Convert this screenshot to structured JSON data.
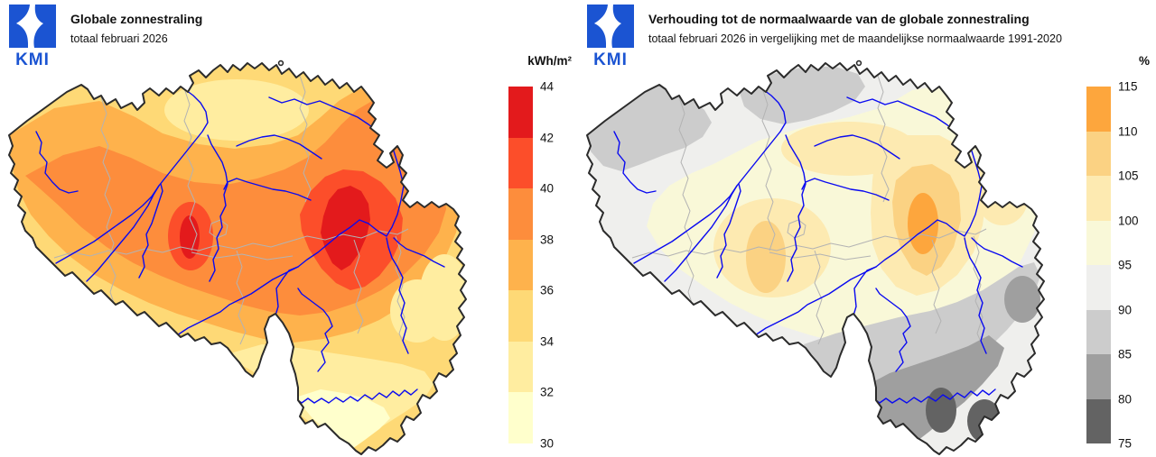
{
  "map_style": {
    "river_color": "#0a0af0",
    "province_border_color": "#b3b3b3",
    "country_border_color": "#2b2b2b",
    "logo_color": "#1b54d2",
    "background": "#ffffff"
  },
  "panels": [
    {
      "logo_text": "KMI",
      "title": "Globale zonnestraling",
      "subtitle": "totaal februari 2026",
      "legend": {
        "unit": "kWh/m²",
        "ticks": [
          "44",
          "42",
          "40",
          "38",
          "36",
          "34",
          "32",
          "30"
        ],
        "colors_top_to_bottom": [
          "#e31a1c",
          "#fc4e2a",
          "#fd8d3c",
          "#feb24c",
          "#fed976",
          "#ffeda0",
          "#ffffcc"
        ]
      }
    },
    {
      "logo_text": "KMI",
      "title": "Verhouding tot de normaalwaarde van de globale zonnestraling",
      "subtitle": "totaal februari 2026 in vergelijking met de maandelijkse normaalwaarde 1991-2020",
      "legend": {
        "unit": "%",
        "ticks": [
          "115",
          "110",
          "105",
          "100",
          "95",
          "90",
          "85",
          "80",
          "75"
        ],
        "colors_top_to_bottom": [
          "#fda63d",
          "#fbd283",
          "#fdeab1",
          "#f9f8d8",
          "#efefed",
          "#cccccc",
          "#9f9f9f",
          "#636363"
        ]
      }
    }
  ],
  "chart_data": [
    {
      "type": "heatmap",
      "title": "Globale zonnestraling",
      "subtitle": "totaal februari 2026",
      "unit": "kWh/m²",
      "scale_ticks": [
        44,
        42,
        40,
        38,
        36,
        34,
        32,
        30
      ],
      "bands": [
        {
          "range": "42-44",
          "color": "#e31a1c"
        },
        {
          "range": "40-42",
          "color": "#fc4e2a"
        },
        {
          "range": "38-40",
          "color": "#fd8d3c"
        },
        {
          "range": "36-38",
          "color": "#feb24c"
        },
        {
          "range": "34-36",
          "color": "#fed976"
        },
        {
          "range": "32-34",
          "color": "#ffeda0"
        },
        {
          "range": "30-32",
          "color": "#ffffcc"
        }
      ],
      "pattern": "maximum 42-44 kWh/m² in east-central Belgium and a small west-central core; 38-40 across the centre; minimum 30-32 kWh/m² in the far south (Ardennes/Gaume)"
    },
    {
      "type": "heatmap",
      "title": "Verhouding tot de normaalwaarde van de globale zonnestraling",
      "subtitle": "totaal februari 2026 in vergelijking met de maandelijkse normaalwaarde 1991-2020",
      "unit": "%",
      "scale_ticks": [
        115,
        110,
        105,
        100,
        95,
        90,
        85,
        80,
        75
      ],
      "bands": [
        {
          "range": "110-115",
          "color": "#fda63d"
        },
        {
          "range": "105-110",
          "color": "#fbd283"
        },
        {
          "range": "100-105",
          "color": "#fdeab1"
        },
        {
          "range": "95-100",
          "color": "#f9f8d8"
        },
        {
          "range": "90-95",
          "color": "#efefed"
        },
        {
          "range": "85-90",
          "color": "#cccccc"
        },
        {
          "range": "80-85",
          "color": "#9f9f9f"
        },
        {
          "range": "75-80",
          "color": "#636363"
        }
      ],
      "pattern": "above normal (up to 110-115%) in east-central Belgium; around normal in the centre; below normal toward the coast (85-90%) and far south (75-80%)"
    }
  ]
}
